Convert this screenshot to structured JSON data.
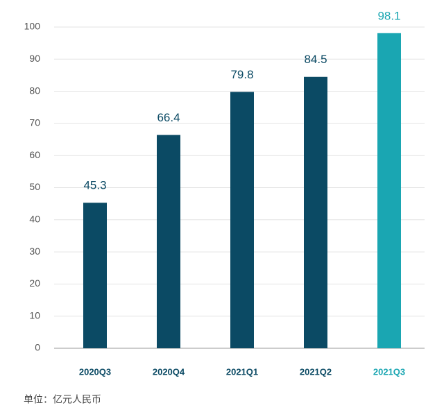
{
  "chart_data": {
    "type": "bar",
    "categories": [
      "2020Q3",
      "2020Q4",
      "2021Q1",
      "2021Q2",
      "2021Q3"
    ],
    "values": [
      45.3,
      66.4,
      79.8,
      84.5,
      98.1
    ],
    "colors": [
      "#0b4a64",
      "#0b4a64",
      "#0b4a64",
      "#0b4a64",
      "#1aa6b2"
    ],
    "ylim": [
      0,
      100
    ],
    "yticks": [
      0,
      10,
      20,
      30,
      40,
      50,
      60,
      70,
      80,
      90,
      100
    ],
    "grid": true,
    "note": "单位：亿元人民币"
  }
}
